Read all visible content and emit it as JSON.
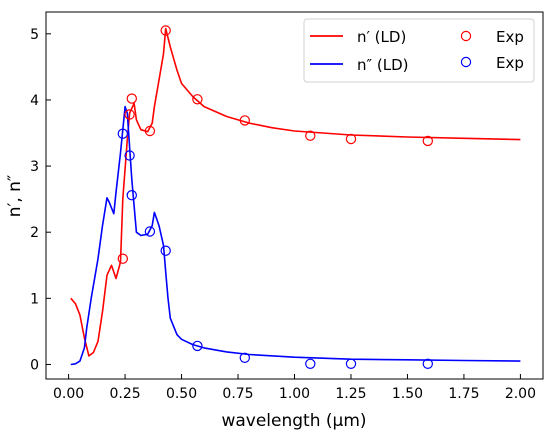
{
  "chart_data": {
    "type": "line",
    "xlabel": "wavelength (μm)",
    "ylabel": "n′, n″",
    "xlim": [
      -0.1,
      2.1
    ],
    "ylim": [
      -0.22,
      5.33
    ],
    "xticks": [
      0.0,
      0.25,
      0.5,
      0.75,
      1.0,
      1.25,
      1.5,
      1.75,
      2.0
    ],
    "xtick_labels": [
      "0.00",
      "0.25",
      "0.50",
      "0.75",
      "1.00",
      "1.25",
      "1.50",
      "1.75",
      "2.00"
    ],
    "yticks": [
      0,
      1,
      2,
      3,
      4,
      5
    ],
    "ytick_labels": [
      "0",
      "1",
      "2",
      "3",
      "4",
      "5"
    ],
    "grid": false,
    "legend": {
      "placement": "top-right",
      "columns": 2
    },
    "series": [
      {
        "name": "n′ (LD)",
        "kind": "line",
        "color": "#ff0000",
        "x": [
          0.01,
          0.03,
          0.05,
          0.07,
          0.09,
          0.11,
          0.13,
          0.15,
          0.17,
          0.19,
          0.21,
          0.23,
          0.24,
          0.26,
          0.27,
          0.29,
          0.3,
          0.32,
          0.35,
          0.37,
          0.38,
          0.4,
          0.42,
          0.43,
          0.45,
          0.48,
          0.5,
          0.55,
          0.6,
          0.7,
          0.8,
          0.9,
          1.0,
          1.25,
          1.5,
          1.75,
          2.0
        ],
        "y": [
          1.0,
          0.92,
          0.75,
          0.4,
          0.13,
          0.18,
          0.35,
          0.8,
          1.35,
          1.5,
          1.3,
          1.55,
          2.5,
          3.4,
          3.8,
          3.95,
          3.7,
          3.55,
          3.52,
          3.65,
          3.9,
          4.3,
          4.7,
          5.08,
          4.8,
          4.45,
          4.25,
          4.05,
          3.9,
          3.75,
          3.65,
          3.58,
          3.53,
          3.47,
          3.44,
          3.42,
          3.4
        ]
      },
      {
        "name": "n″ (LD)",
        "kind": "line",
        "color": "#0000ff",
        "x": [
          0.01,
          0.03,
          0.05,
          0.07,
          0.08,
          0.1,
          0.13,
          0.15,
          0.17,
          0.18,
          0.2,
          0.21,
          0.23,
          0.25,
          0.26,
          0.28,
          0.3,
          0.32,
          0.35,
          0.37,
          0.38,
          0.4,
          0.42,
          0.43,
          0.44,
          0.45,
          0.48,
          0.5,
          0.55,
          0.6,
          0.7,
          0.8,
          1.0,
          1.25,
          1.5,
          1.75,
          2.0
        ],
        "y": [
          0.0,
          0.01,
          0.05,
          0.25,
          0.55,
          1.0,
          1.6,
          2.1,
          2.52,
          2.45,
          2.28,
          2.6,
          3.2,
          3.9,
          3.8,
          2.8,
          2.0,
          1.95,
          1.97,
          2.1,
          2.3,
          2.1,
          1.8,
          1.4,
          1.0,
          0.7,
          0.45,
          0.38,
          0.3,
          0.25,
          0.19,
          0.15,
          0.11,
          0.08,
          0.07,
          0.06,
          0.05
        ]
      },
      {
        "name": "Exp",
        "kind": "scatter",
        "color": "#ff0000",
        "x": [
          0.24,
          0.27,
          0.28,
          0.36,
          0.43,
          0.57,
          0.78,
          1.07,
          1.25,
          1.59
        ],
        "y": [
          1.6,
          3.78,
          4.02,
          3.53,
          5.05,
          4.01,
          3.69,
          3.46,
          3.41,
          3.38
        ]
      },
      {
        "name": "Exp",
        "kind": "scatter",
        "color": "#0000ff",
        "x": [
          0.24,
          0.27,
          0.28,
          0.36,
          0.43,
          0.57,
          0.78,
          1.07,
          1.25,
          1.59
        ],
        "y": [
          3.49,
          3.16,
          2.56,
          2.01,
          1.72,
          0.28,
          0.1,
          0.01,
          0.01,
          0.01
        ]
      }
    ]
  }
}
